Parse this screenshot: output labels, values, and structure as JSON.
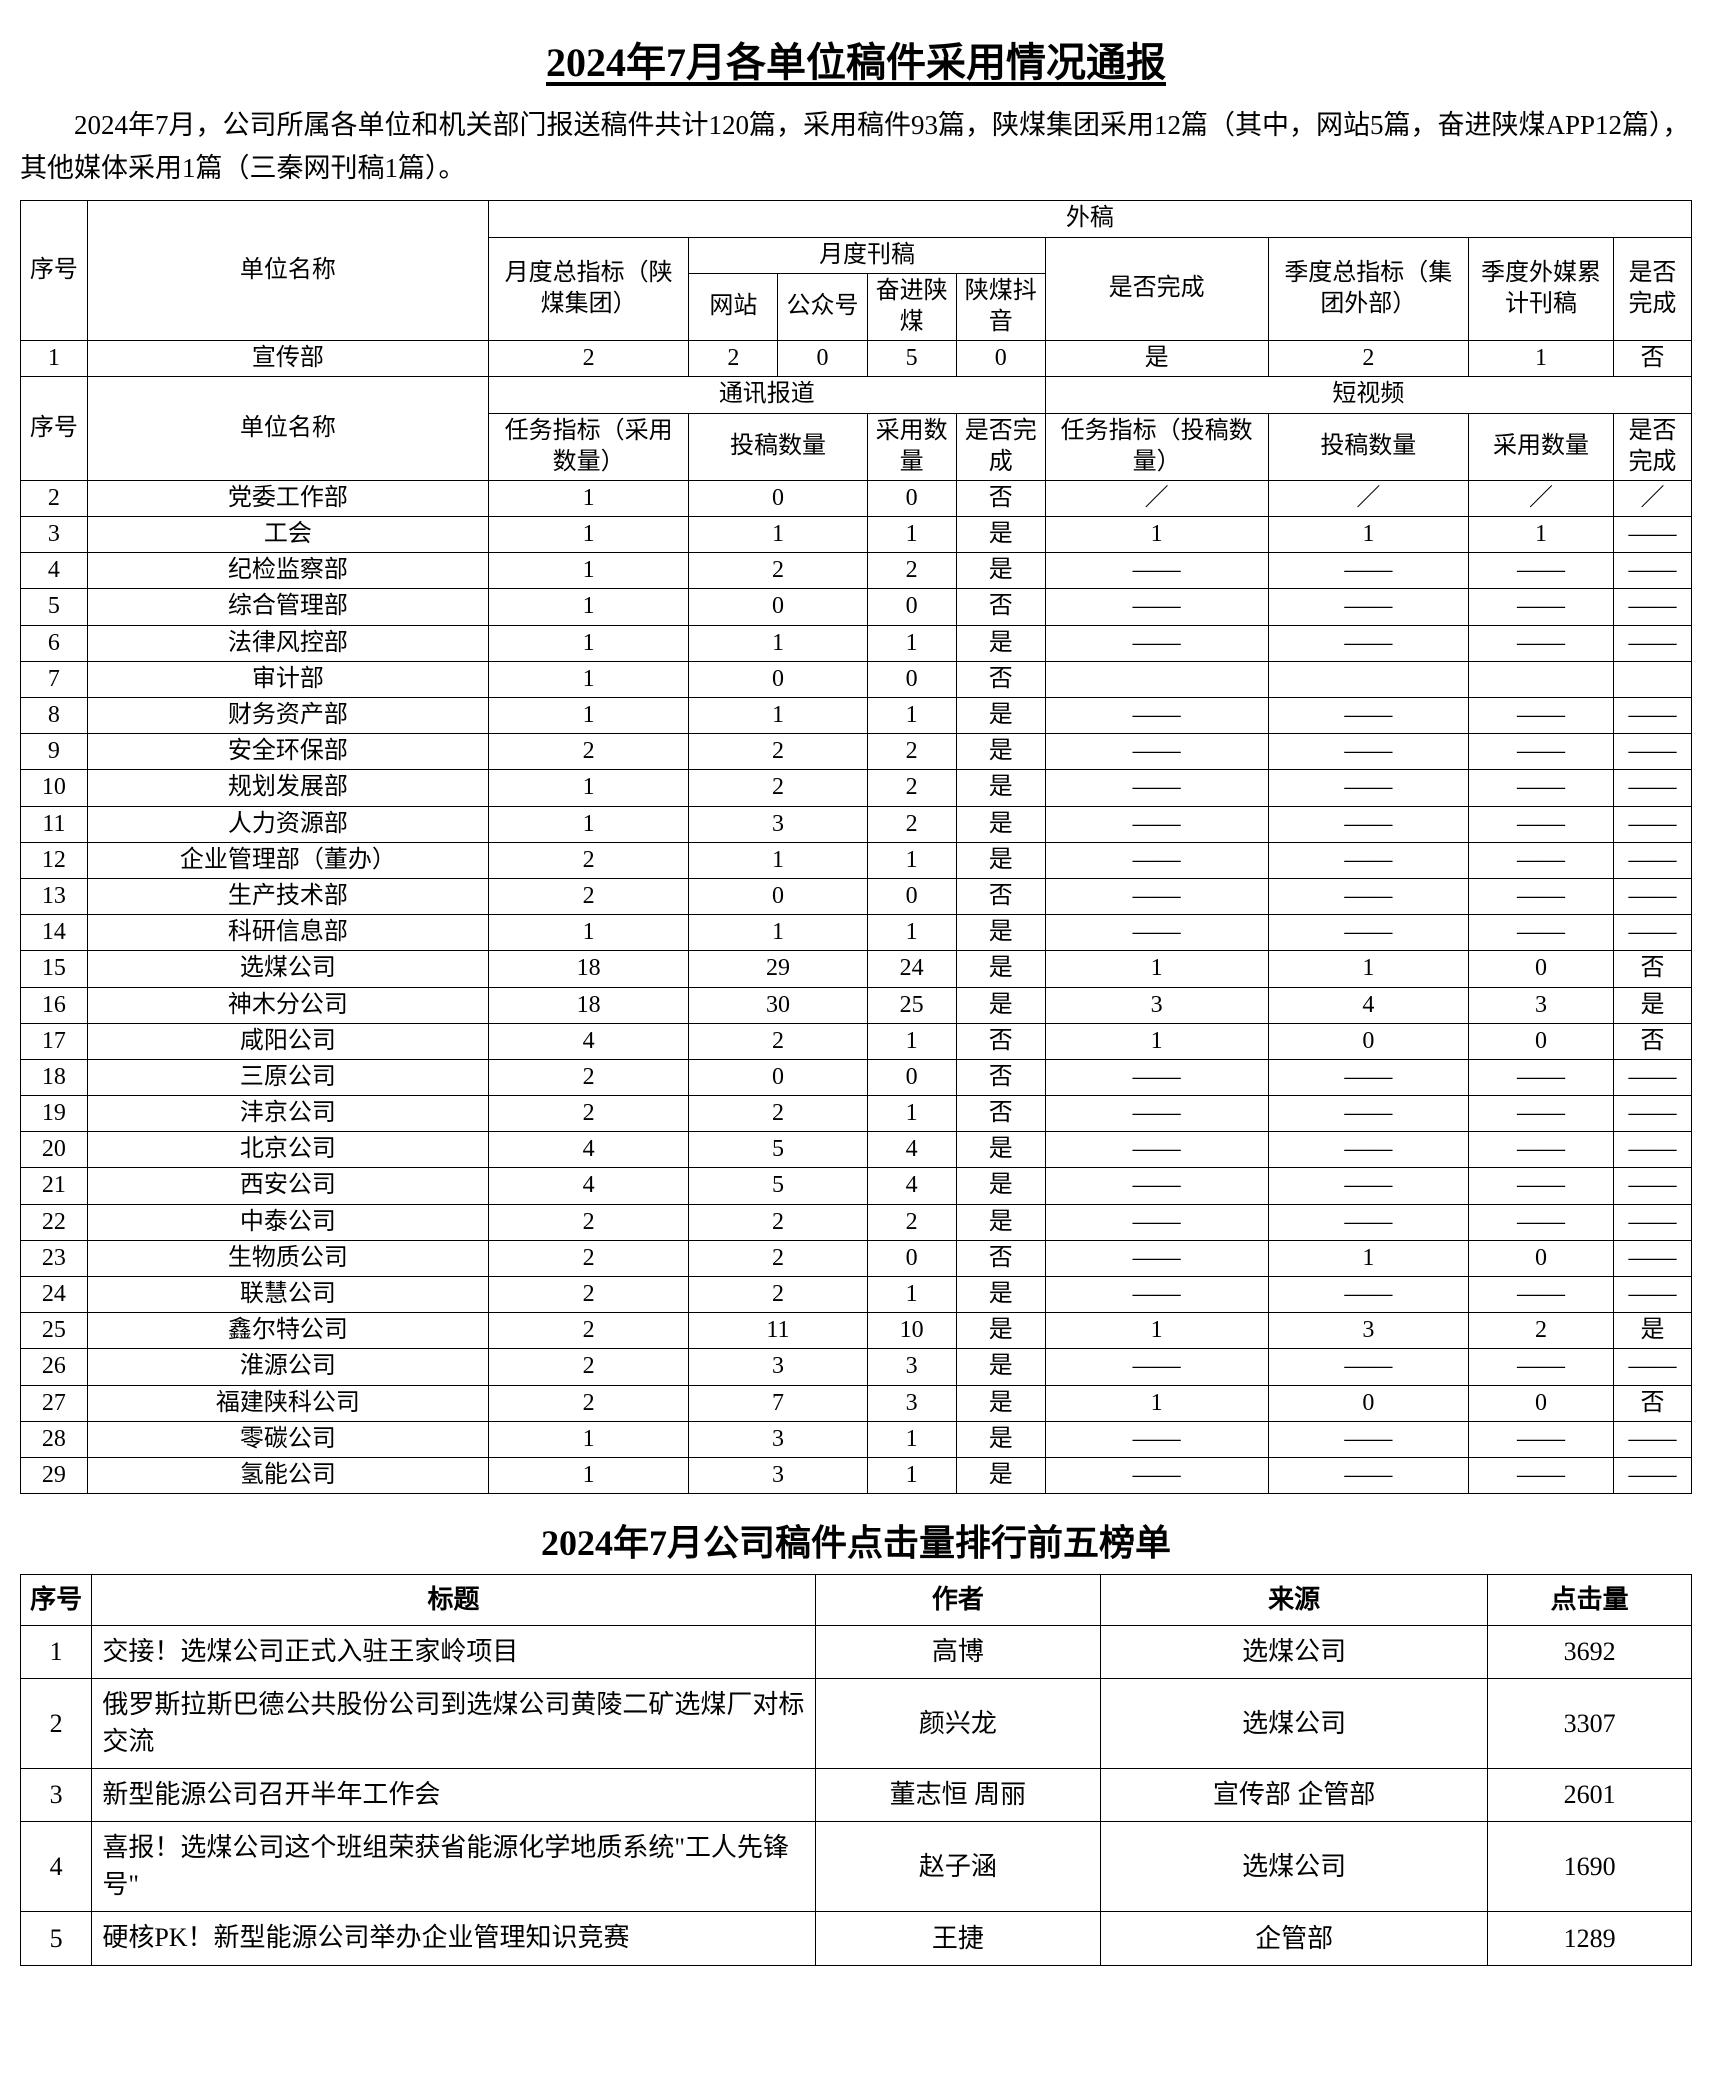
{
  "title": "2024年7月各单位稿件采用情况通报",
  "intro": "2024年7月，公司所属各单位和机关部门报送稿件共计120篇，采用稿件93篇，陕煤集团采用12篇（其中，网站5篇，奋进陕煤APP12篇），其他媒体采用1篇（三秦网刊稿1篇）。",
  "headers1": {
    "seq": "序号",
    "unit": "单位名称",
    "waigao": "外稿",
    "monthly_total": "月度总指标（陕煤集团）",
    "monthly_pub": "月度刊稿",
    "website": "网站",
    "gzh": "公众号",
    "fenjin": "奋进陕煤",
    "douyin": "陕煤抖音",
    "done": "是否完成",
    "quarter_total": "季度总指标（集团外部）",
    "quarter_pub": "季度外媒累计刊稿",
    "done2": "是否完成"
  },
  "row_xcb": {
    "seq": "1",
    "unit": "宣传部",
    "mt": "2",
    "web": "2",
    "gzh": "0",
    "fj": "5",
    "dy": "0",
    "done": "是",
    "qt": "2",
    "qp": "1",
    "d2": "否"
  },
  "headers2": {
    "seq": "序号",
    "unit": "单位名称",
    "news": "通讯报道",
    "video": "短视频",
    "task_a": "任务指标（采用数量）",
    "submit_a": "投稿数量",
    "accept_a": "采用数量",
    "done_a": "是否完成",
    "task_b": "任务指标（投稿数量）",
    "submit_b": "投稿数量",
    "accept_b": "采用数量",
    "done_b": "是否完成"
  },
  "rows2": [
    {
      "seq": "2",
      "unit": "党委工作部",
      "ta": "1",
      "sa": "0",
      "aa": "0",
      "da": "否",
      "tb": "／",
      "sb": "／",
      "ab": "／",
      "db": "／"
    },
    {
      "seq": "3",
      "unit": "工会",
      "ta": "1",
      "sa": "1",
      "aa": "1",
      "da": "是",
      "tb": "1",
      "sb": "1",
      "ab": "1",
      "db": "——"
    },
    {
      "seq": "4",
      "unit": "纪检监察部",
      "ta": "1",
      "sa": "2",
      "aa": "2",
      "da": "是",
      "tb": "——",
      "sb": "——",
      "ab": "——",
      "db": "——"
    },
    {
      "seq": "5",
      "unit": "综合管理部",
      "ta": "1",
      "sa": "0",
      "aa": "0",
      "da": "否",
      "tb": "——",
      "sb": "——",
      "ab": "——",
      "db": "——"
    },
    {
      "seq": "6",
      "unit": "法律风控部",
      "ta": "1",
      "sa": "1",
      "aa": "1",
      "da": "是",
      "tb": "——",
      "sb": "——",
      "ab": "——",
      "db": "——"
    },
    {
      "seq": "7",
      "unit": "审计部",
      "ta": "1",
      "sa": "0",
      "aa": "0",
      "da": "否",
      "tb": "",
      "sb": "",
      "ab": "",
      "db": ""
    },
    {
      "seq": "8",
      "unit": "财务资产部",
      "ta": "1",
      "sa": "1",
      "aa": "1",
      "da": "是",
      "tb": "——",
      "sb": "——",
      "ab": "——",
      "db": "——"
    },
    {
      "seq": "9",
      "unit": "安全环保部",
      "ta": "2",
      "sa": "2",
      "aa": "2",
      "da": "是",
      "tb": "——",
      "sb": "——",
      "ab": "——",
      "db": "——"
    },
    {
      "seq": "10",
      "unit": "规划发展部",
      "ta": "1",
      "sa": "2",
      "aa": "2",
      "da": "是",
      "tb": "——",
      "sb": "——",
      "ab": "——",
      "db": "——"
    },
    {
      "seq": "11",
      "unit": "人力资源部",
      "ta": "1",
      "sa": "3",
      "aa": "2",
      "da": "是",
      "tb": "——",
      "sb": "——",
      "ab": "——",
      "db": "——"
    },
    {
      "seq": "12",
      "unit": "企业管理部（董办）",
      "ta": "2",
      "sa": "1",
      "aa": "1",
      "da": "是",
      "tb": "——",
      "sb": "——",
      "ab": "——",
      "db": "——"
    },
    {
      "seq": "13",
      "unit": "生产技术部",
      "ta": "2",
      "sa": "0",
      "aa": "0",
      "da": "否",
      "tb": "——",
      "sb": "——",
      "ab": "——",
      "db": "——"
    },
    {
      "seq": "14",
      "unit": "科研信息部",
      "ta": "1",
      "sa": "1",
      "aa": "1",
      "da": "是",
      "tb": "——",
      "sb": "——",
      "ab": "——",
      "db": "——"
    },
    {
      "seq": "15",
      "unit": "选煤公司",
      "ta": "18",
      "sa": "29",
      "aa": "24",
      "da": "是",
      "tb": "1",
      "sb": "1",
      "ab": "0",
      "db": "否"
    },
    {
      "seq": "16",
      "unit": "神木分公司",
      "ta": "18",
      "sa": "30",
      "aa": "25",
      "da": "是",
      "tb": "3",
      "sb": "4",
      "ab": "3",
      "db": "是"
    },
    {
      "seq": "17",
      "unit": "咸阳公司",
      "ta": "4",
      "sa": "2",
      "aa": "1",
      "da": "否",
      "tb": "1",
      "sb": "0",
      "ab": "0",
      "db": "否"
    },
    {
      "seq": "18",
      "unit": "三原公司",
      "ta": "2",
      "sa": "0",
      "aa": "0",
      "da": "否",
      "tb": "——",
      "sb": "——",
      "ab": "——",
      "db": "——"
    },
    {
      "seq": "19",
      "unit": "沣京公司",
      "ta": "2",
      "sa": "2",
      "aa": "1",
      "da": "否",
      "tb": "——",
      "sb": "——",
      "ab": "——",
      "db": "——"
    },
    {
      "seq": "20",
      "unit": "北京公司",
      "ta": "4",
      "sa": "5",
      "aa": "4",
      "da": "是",
      "tb": "——",
      "sb": "——",
      "ab": "——",
      "db": "——"
    },
    {
      "seq": "21",
      "unit": "西安公司",
      "ta": "4",
      "sa": "5",
      "aa": "4",
      "da": "是",
      "tb": "——",
      "sb": "——",
      "ab": "——",
      "db": "——"
    },
    {
      "seq": "22",
      "unit": "中泰公司",
      "ta": "2",
      "sa": "2",
      "aa": "2",
      "da": "是",
      "tb": "——",
      "sb": "——",
      "ab": "——",
      "db": "——"
    },
    {
      "seq": "23",
      "unit": "生物质公司",
      "ta": "2",
      "sa": "2",
      "aa": "0",
      "da": "否",
      "tb": "——",
      "sb": "1",
      "ab": "0",
      "db": "——"
    },
    {
      "seq": "24",
      "unit": "联慧公司",
      "ta": "2",
      "sa": "2",
      "aa": "1",
      "da": "是",
      "tb": "——",
      "sb": "——",
      "ab": "——",
      "db": "——"
    },
    {
      "seq": "25",
      "unit": "鑫尔特公司",
      "ta": "2",
      "sa": "11",
      "aa": "10",
      "da": "是",
      "tb": "1",
      "sb": "3",
      "ab": "2",
      "db": "是"
    },
    {
      "seq": "26",
      "unit": "淮源公司",
      "ta": "2",
      "sa": "3",
      "aa": "3",
      "da": "是",
      "tb": "——",
      "sb": "——",
      "ab": "——",
      "db": "——"
    },
    {
      "seq": "27",
      "unit": "福建陕科公司",
      "ta": "2",
      "sa": "7",
      "aa": "3",
      "da": "是",
      "tb": "1",
      "sb": "0",
      "ab": "0",
      "db": "否"
    },
    {
      "seq": "28",
      "unit": "零碳公司",
      "ta": "1",
      "sa": "3",
      "aa": "1",
      "da": "是",
      "tb": "——",
      "sb": "——",
      "ab": "——",
      "db": "——"
    },
    {
      "seq": "29",
      "unit": "氢能公司",
      "ta": "1",
      "sa": "3",
      "aa": "1",
      "da": "是",
      "tb": "——",
      "sb": "——",
      "ab": "——",
      "db": "——"
    }
  ],
  "rank_title": "2024年7月公司稿件点击量排行前五榜单",
  "rank_headers": {
    "seq": "序号",
    "title": "标题",
    "author": "作者",
    "source": "来源",
    "clicks": "点击量"
  },
  "rank_rows": [
    {
      "seq": "1",
      "title": "交接！选煤公司正式入驻王家岭项目",
      "author": "高博",
      "source": "选煤公司",
      "clicks": "3692"
    },
    {
      "seq": "2",
      "title": "俄罗斯拉斯巴德公共股份公司到选煤公司黄陵二矿选煤厂对标交流",
      "author": "颜兴龙",
      "source": "选煤公司",
      "clicks": "3307"
    },
    {
      "seq": "3",
      "title": "新型能源公司召开半年工作会",
      "author": "董志恒 周丽",
      "source": "宣传部 企管部",
      "clicks": "2601"
    },
    {
      "seq": "4",
      "title": "喜报！选煤公司这个班组荣获省能源化学地质系统\"工人先锋号\"",
      "author": "赵子涵",
      "source": "选煤公司",
      "clicks": "1690"
    },
    {
      "seq": "5",
      "title": "硬核PK！新型能源公司举办企业管理知识竞赛",
      "author": "王捷",
      "source": "企管部",
      "clicks": "1289"
    }
  ],
  "colors": {
    "border": "#000000",
    "bg": "#ffffff",
    "text": "#000000"
  }
}
